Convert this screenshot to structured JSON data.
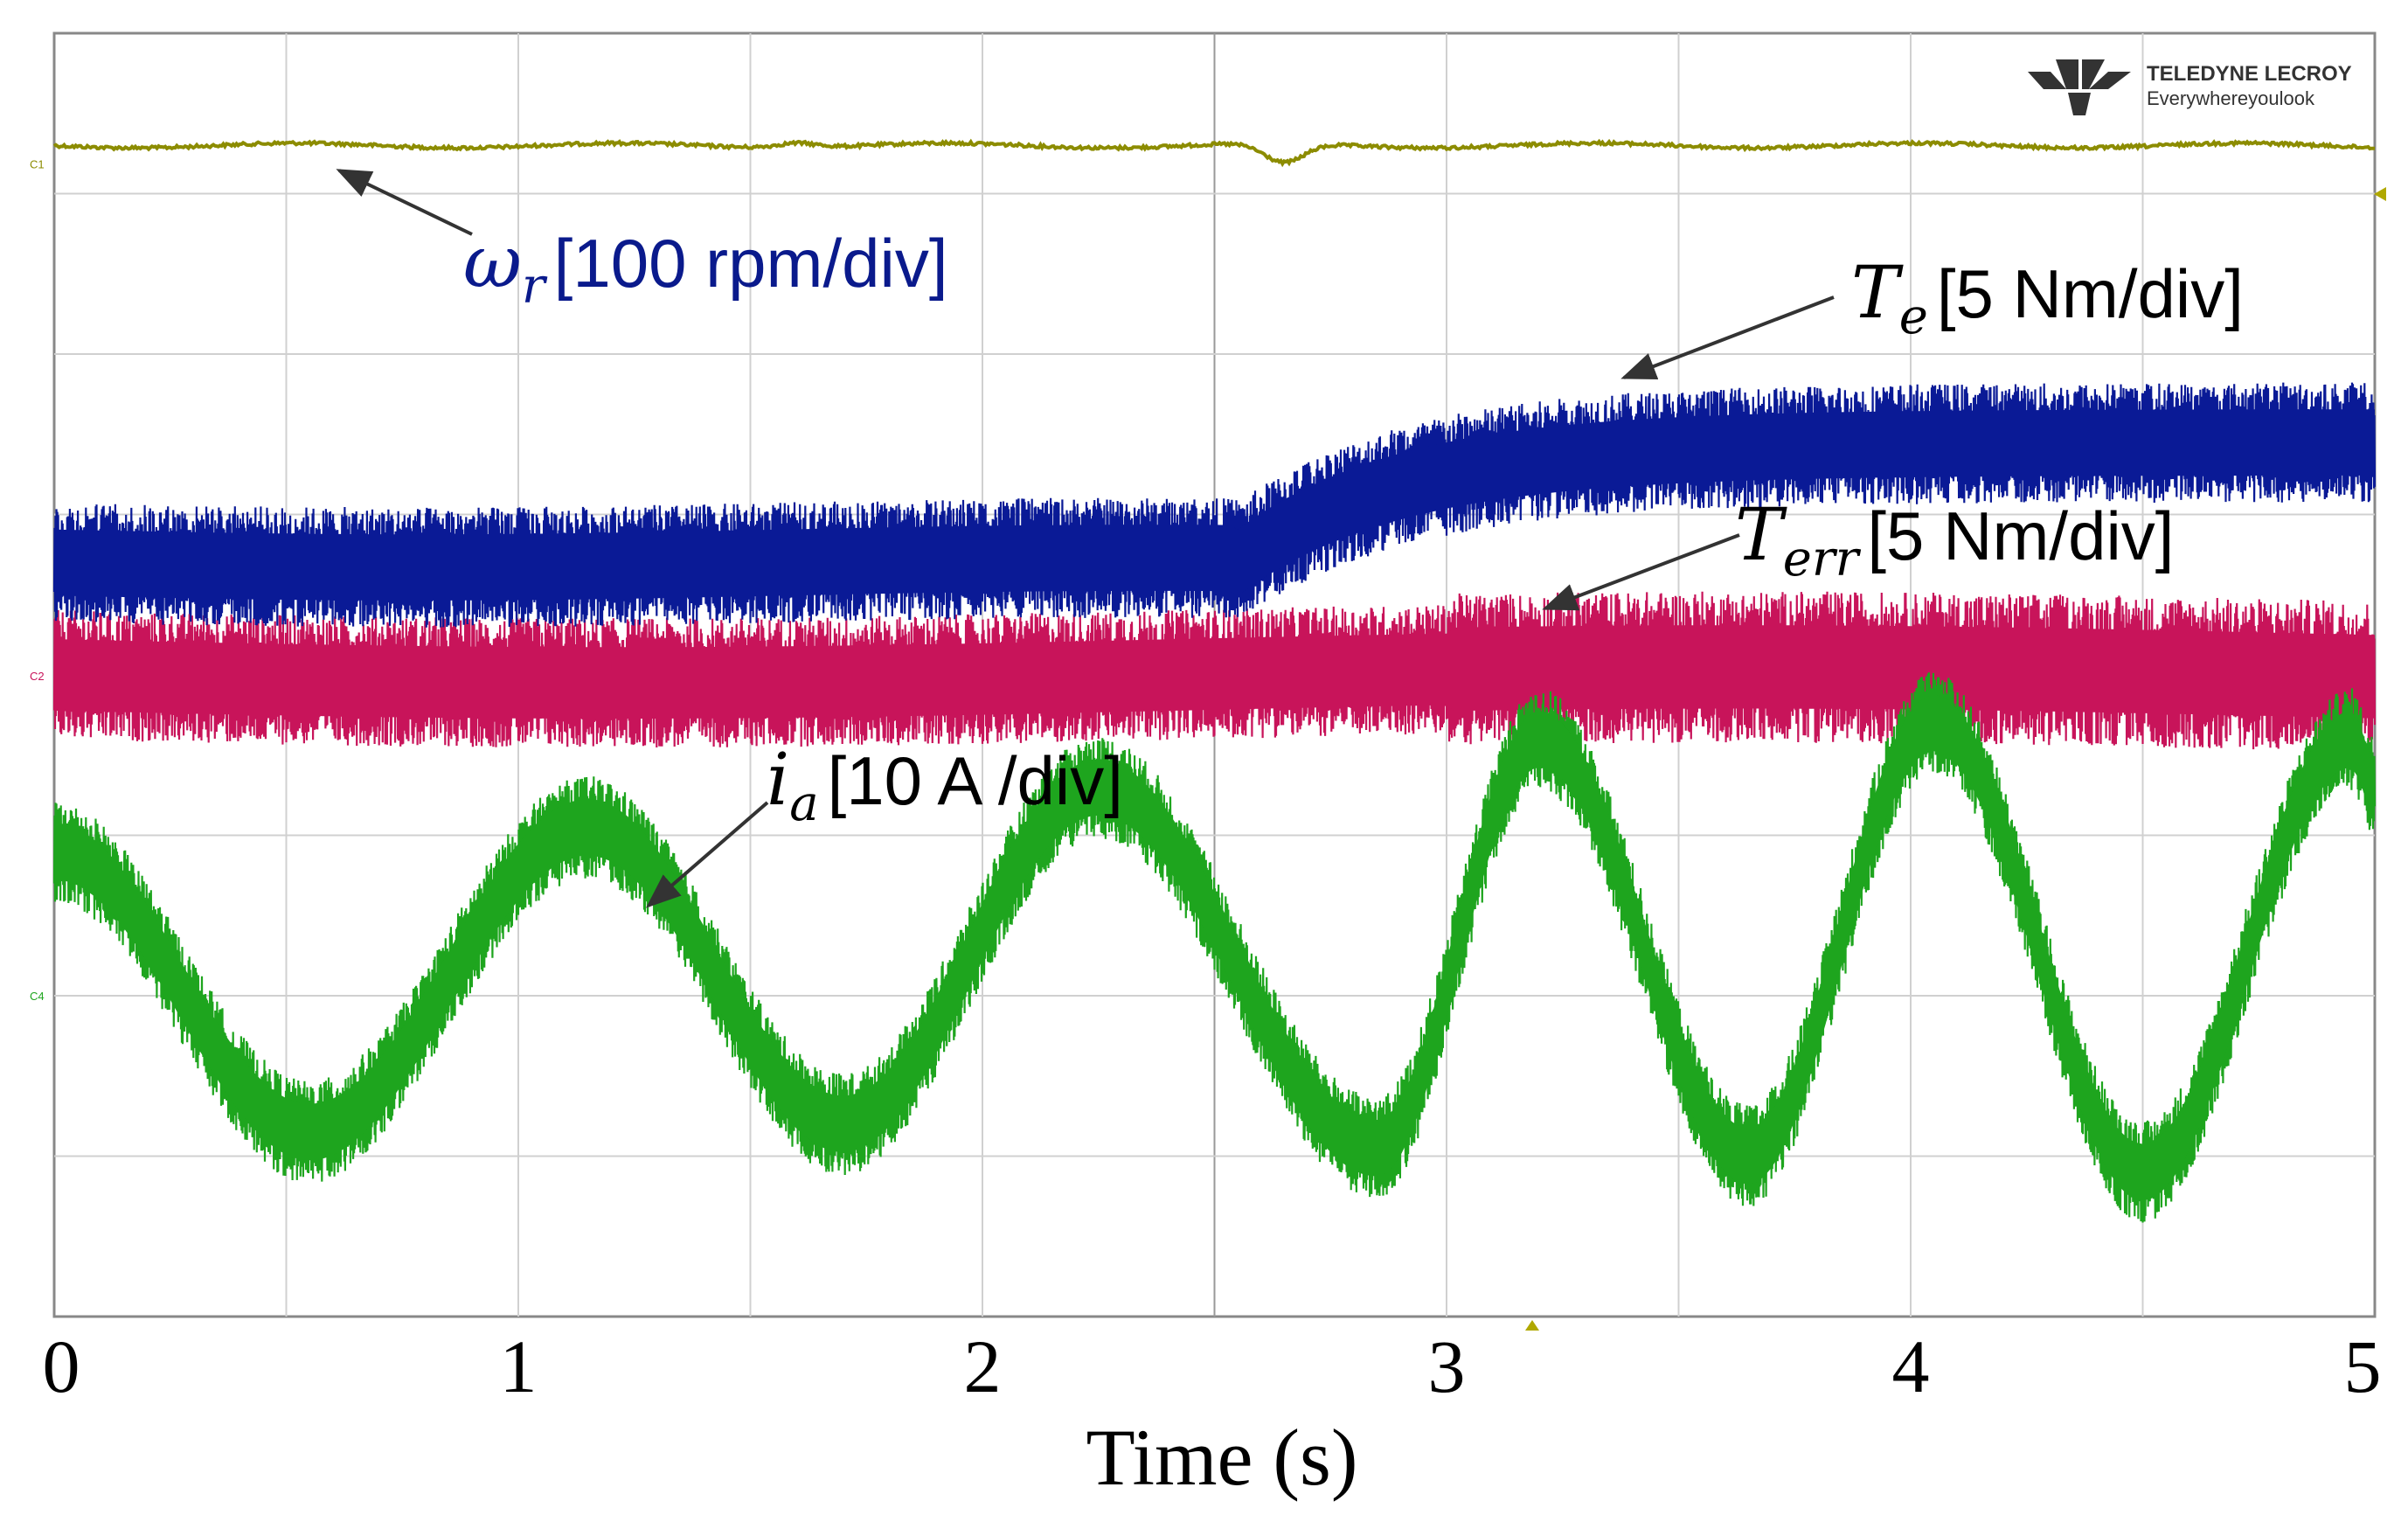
{
  "chart_data": {
    "type": "line",
    "title": "",
    "xlabel": "Time (s)",
    "ylabel": "",
    "xlim": [
      0,
      5
    ],
    "x_ticks": [
      "0",
      "1",
      "2",
      "3",
      "4",
      "5"
    ],
    "grid": true,
    "divisions": {
      "x": 10,
      "y": 8
    },
    "legend_position": "none",
    "brand": {
      "name": "TELEDYNE LECROY",
      "tagline": "Everywhereyoulook"
    },
    "channel_markers": [
      "C1",
      "C2",
      "C4"
    ],
    "series": [
      {
        "name": "omega_r",
        "symbol": "ω",
        "subscript": "r",
        "label": "[100 rpm/div]",
        "color": "#8c8c00",
        "level_div": 0.7,
        "noise_div": 0.01,
        "dips": [
          {
            "t": 1.6,
            "depth": 0.05
          },
          {
            "t": 2.5,
            "depth": 0.0
          },
          {
            "t": 2.65,
            "depth": 0.12
          }
        ]
      },
      {
        "name": "T_e",
        "symbol": "T",
        "subscript": "e",
        "label": "[5 Nm/div]",
        "color": "#0a1a96",
        "level_before_div": 3.3,
        "level_after_div": 2.55,
        "step_time": 2.55,
        "band_div": 0.5
      },
      {
        "name": "T_err",
        "symbol": "T",
        "subscript": "err",
        "label": "[5 Nm/div]",
        "color": "#c8145a",
        "level_div": 4.0,
        "band_div": 0.45
      },
      {
        "name": "i_a",
        "symbol": "i",
        "subscript": "a",
        "label": "[10 A /div]",
        "color": "#1ea51e",
        "center_div": 6.05,
        "amp_before_div": 0.85,
        "amp_after_div": 1.2,
        "peaks": [
          [
            0.0,
            5.1
          ],
          [
            0.55,
            6.85
          ],
          [
            1.15,
            4.95
          ],
          [
            1.7,
            6.8
          ],
          [
            2.25,
            4.7
          ],
          [
            2.85,
            6.95
          ],
          [
            3.2,
            4.4
          ],
          [
            3.65,
            7.0
          ],
          [
            4.05,
            4.3
          ],
          [
            4.5,
            7.1
          ],
          [
            4.95,
            4.4
          ],
          [
            5.0,
            4.7
          ]
        ],
        "band_div": 0.32
      }
    ]
  }
}
